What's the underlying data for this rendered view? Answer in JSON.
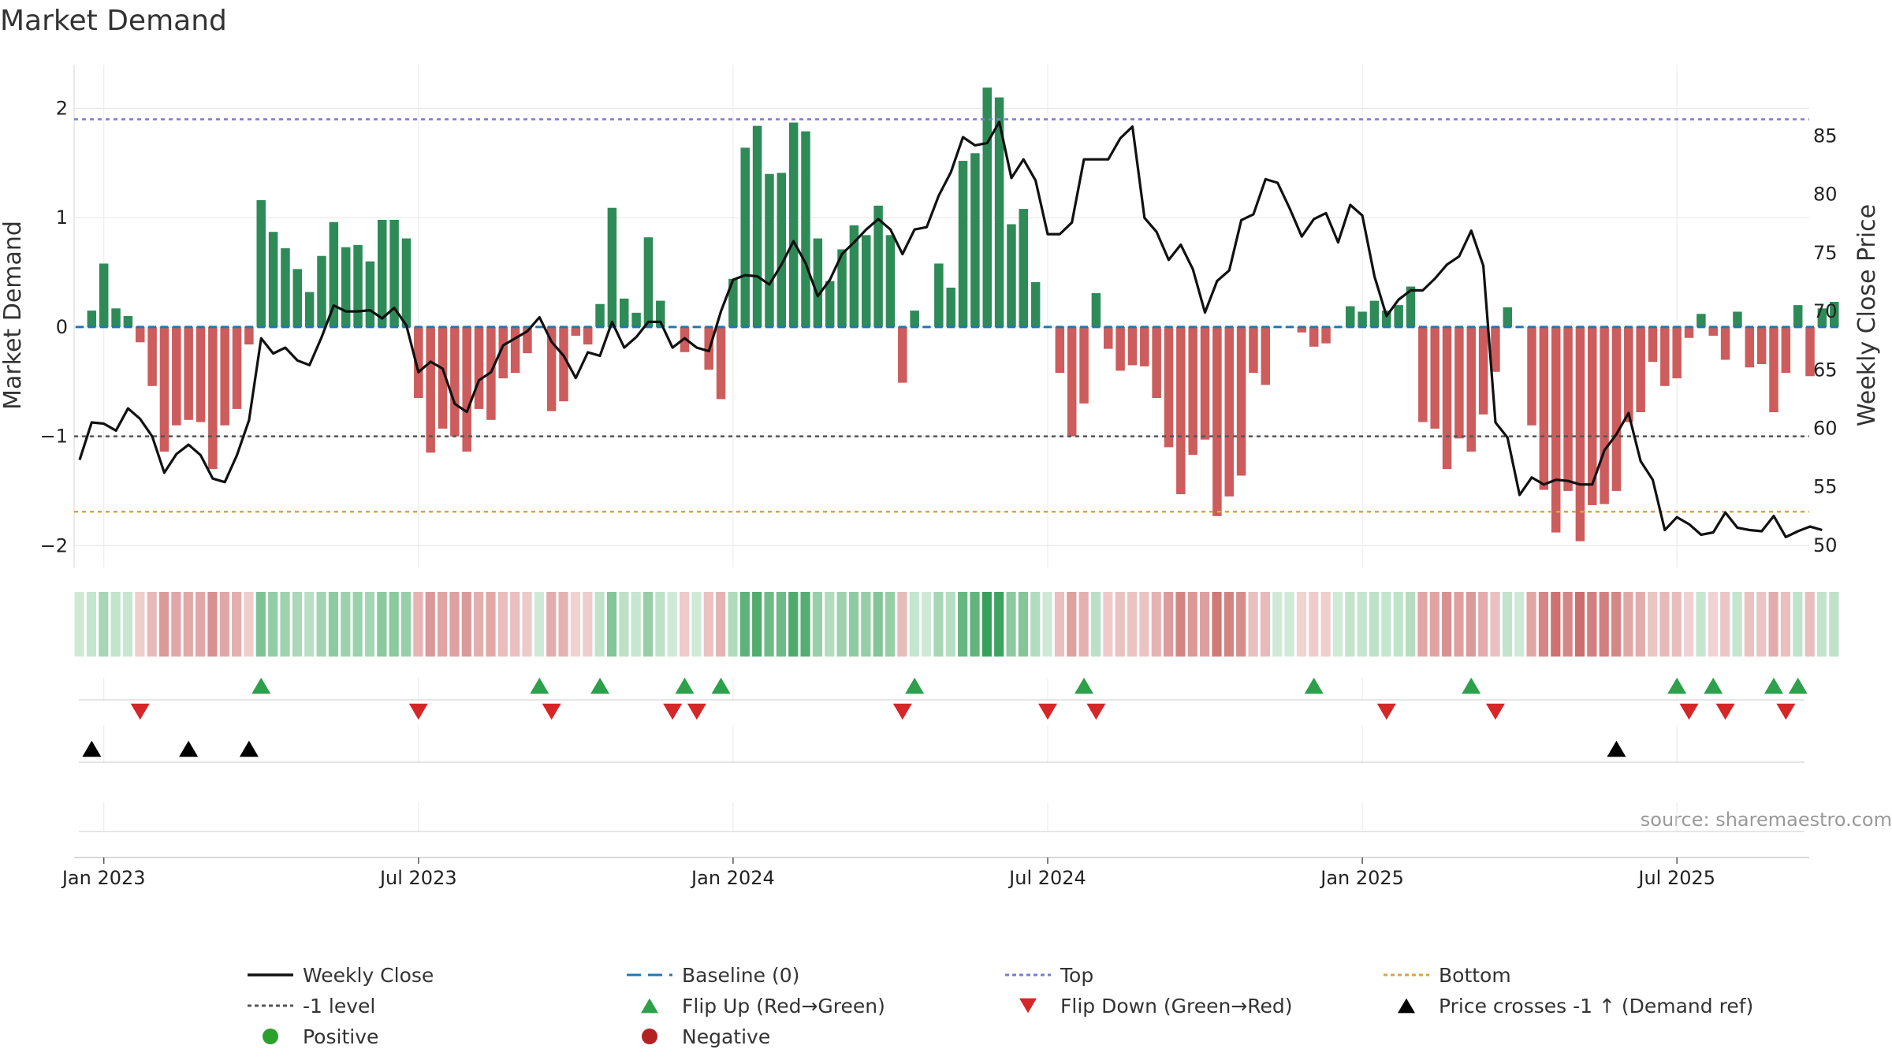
{
  "chart_data": {
    "type": "bar",
    "title": "Market Demand",
    "ylabel": "Market Demand",
    "y2label": "Weekly Close Price",
    "ylim": [
      -2.2,
      2.4
    ],
    "y2lim": [
      48.1,
      91.1
    ],
    "yticks": [
      {
        "value": 2,
        "label": "2"
      },
      {
        "value": 1,
        "label": "1"
      },
      {
        "value": 0,
        "label": "0"
      },
      {
        "value": -1,
        "label": "−1"
      },
      {
        "value": -2,
        "label": "−2"
      }
    ],
    "y2ticks": [
      50,
      55,
      60,
      65,
      70,
      75,
      80,
      85
    ],
    "xticks": [
      {
        "index": 2,
        "label": "Jan 2023"
      },
      {
        "index": 28,
        "label": "Jul 2023"
      },
      {
        "index": 54,
        "label": "Jan 2024"
      },
      {
        "index": 80,
        "label": "Jul 2024"
      },
      {
        "index": 106,
        "label": "Jan 2025"
      },
      {
        "index": 132,
        "label": "Jul 2025"
      }
    ],
    "demand": [
      0.0,
      0.15,
      0.58,
      0.17,
      0.1,
      -0.14,
      -0.54,
      -1.14,
      -0.9,
      -0.85,
      -0.87,
      -1.3,
      -0.9,
      -0.75,
      -0.16,
      1.16,
      0.87,
      0.72,
      0.53,
      0.32,
      0.65,
      0.96,
      0.73,
      0.75,
      0.6,
      0.98,
      0.98,
      0.81,
      -0.65,
      -1.15,
      -0.93,
      -1.0,
      -1.14,
      -0.75,
      -0.85,
      -0.47,
      -0.42,
      -0.24,
      0.0,
      -0.77,
      -0.68,
      -0.08,
      -0.16,
      0.21,
      1.09,
      0.26,
      0.13,
      0.82,
      0.24,
      0.0,
      -0.23,
      0.0,
      -0.39,
      -0.66,
      0.44,
      1.64,
      1.84,
      1.4,
      1.41,
      1.87,
      1.79,
      0.81,
      0.42,
      0.71,
      0.93,
      0.84,
      1.11,
      0.84,
      -0.51,
      0.15,
      0.0,
      0.58,
      0.36,
      1.52,
      1.59,
      2.19,
      2.1,
      0.94,
      1.08,
      0.41,
      0.0,
      -0.42,
      -1.0,
      -0.7,
      0.31,
      -0.2,
      -0.4,
      -0.35,
      -0.36,
      -0.65,
      -1.1,
      -1.53,
      -1.17,
      -1.03,
      -1.73,
      -1.55,
      -1.36,
      -0.42,
      -0.53,
      0.0,
      0.0,
      -0.05,
      -0.18,
      -0.15,
      0.0,
      0.19,
      0.14,
      0.24,
      0.15,
      0.2,
      0.37,
      -0.87,
      -0.93,
      -1.3,
      -1.02,
      -1.14,
      -0.8,
      -0.41,
      0.18,
      0.0,
      -0.9,
      -1.49,
      -1.88,
      -1.5,
      -1.96,
      -1.63,
      -1.62,
      -1.5,
      -0.87,
      -0.78,
      -0.32,
      -0.54,
      -0.47,
      -0.1,
      0.12,
      -0.08,
      -0.3,
      0.14,
      -0.37,
      -0.34,
      -0.78,
      -0.42,
      0.2,
      -0.45,
      0.17,
      0.23
    ],
    "price": [
      57.3,
      60.5,
      60.4,
      59.8,
      61.7,
      60.8,
      59.3,
      56.2,
      57.8,
      58.6,
      57.7,
      55.7,
      55.4,
      57.7,
      60.7,
      67.7,
      66.4,
      66.9,
      65.8,
      65.4,
      67.8,
      70.5,
      70.0,
      70.0,
      70.1,
      69.4,
      70.3,
      68.8,
      64.8,
      65.7,
      65.1,
      62.1,
      61.4,
      64.1,
      64.8,
      67.1,
      67.7,
      68.3,
      69.5,
      67.4,
      66.2,
      64.3,
      66.5,
      66.2,
      69.1,
      66.9,
      67.8,
      69.1,
      69.1,
      66.9,
      67.7,
      66.9,
      66.6,
      70.0,
      72.7,
      73.1,
      73.0,
      72.3,
      74.0,
      76.0,
      74.1,
      71.3,
      72.7,
      74.9,
      75.9,
      77.0,
      77.9,
      77.0,
      74.9,
      77.0,
      77.2,
      79.9,
      81.9,
      84.9,
      84.2,
      84.4,
      86.2,
      81.4,
      83.0,
      81.2,
      76.6,
      76.6,
      77.6,
      83.0,
      83.0,
      83.0,
      84.8,
      85.8,
      78.0,
      76.8,
      74.4,
      75.7,
      73.6,
      69.9,
      72.6,
      73.5,
      77.8,
      78.3,
      81.3,
      81.0,
      78.8,
      76.4,
      77.9,
      78.4,
      75.9,
      79.1,
      78.2,
      73.0,
      69.6,
      71.0,
      71.8,
      71.8,
      72.8,
      74.0,
      74.7,
      76.9,
      73.9,
      60.5,
      59.2,
      54.3,
      55.8,
      55.2,
      55.6,
      55.5,
      55.2,
      55.2,
      58.1,
      59.5,
      61.3,
      57.2,
      55.6,
      51.3,
      52.4,
      51.8,
      50.9,
      51.1,
      52.8,
      51.5,
      51.3,
      51.2,
      52.5,
      50.7,
      51.2,
      51.6,
      51.3
    ],
    "levels": {
      "baseline": 0,
      "top": 1.9,
      "minus_one": -1,
      "bottom": -1.69
    },
    "flip_up": [
      15,
      38,
      43,
      50,
      53,
      69,
      83,
      102,
      115,
      132,
      135,
      140,
      142
    ],
    "flip_down": [
      5,
      28,
      39,
      49,
      51,
      68,
      80,
      84,
      108,
      117,
      133,
      136,
      141
    ],
    "price_cross": [
      1,
      9,
      14,
      127
    ],
    "legend": [
      {
        "key": "close",
        "label": "Weekly Close"
      },
      {
        "key": "baseline",
        "label": "Baseline (0)"
      },
      {
        "key": "top",
        "label": "Top"
      },
      {
        "key": "bottom",
        "label": "Bottom"
      },
      {
        "key": "minus1",
        "label": "-1 level"
      },
      {
        "key": "flipup",
        "label": "Flip Up (Red→Green)"
      },
      {
        "key": "flipdown",
        "label": "Flip Down (Green→Red)"
      },
      {
        "key": "cross",
        "label": "Price crosses -1 ↑ (Demand ref)"
      },
      {
        "key": "positive",
        "label": "Positive"
      },
      {
        "key": "negative",
        "label": "Negative"
      }
    ],
    "source": "source: sharemaestro.com"
  },
  "colors": {
    "positive": "#2e8b57",
    "negative": "#cd5c5c",
    "close": "#111111",
    "baseline": "#1f77b4",
    "top": "#7b7bd6",
    "bottom": "#d9a441",
    "minus1": "#555555",
    "flipup": "#2ca04a",
    "flipdown": "#d62728",
    "cross": "#000000",
    "legend_positive": "#2ca02c",
    "legend_negative": "#b22222"
  }
}
